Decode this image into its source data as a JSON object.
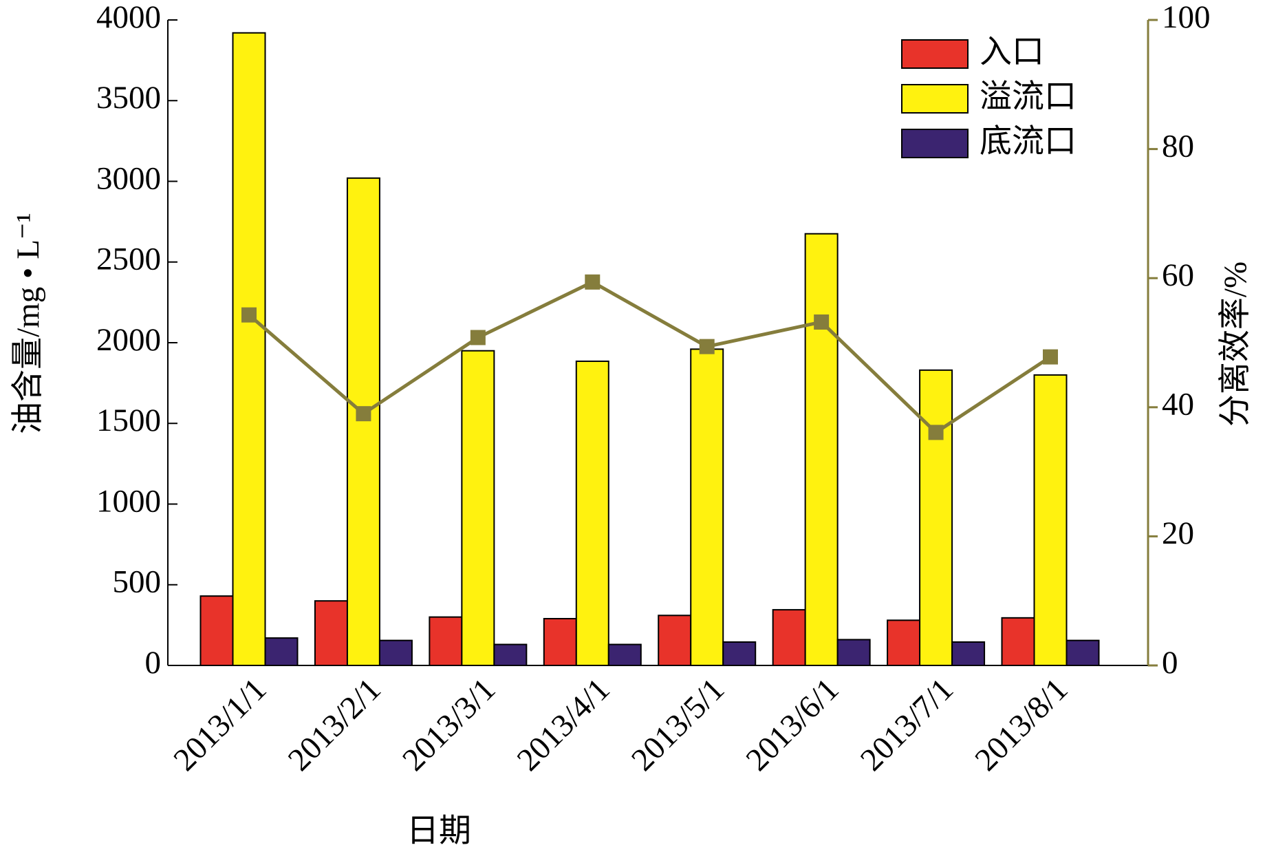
{
  "chart_data": {
    "type": "bar",
    "categories": [
      "2013/1/1",
      "2013/2/1",
      "2013/3/1",
      "2013/4/1",
      "2013/5/1",
      "2013/6/1",
      "2013/7/1",
      "2013/8/1"
    ],
    "x_label": "日期",
    "y_label": "油含量/mg • L⁻¹",
    "y2_label": "分离效率/%",
    "series": [
      {
        "name": "入口",
        "color": "#e8332a",
        "values": [
          430,
          400,
          300,
          290,
          310,
          345,
          280,
          295
        ]
      },
      {
        "name": "溢流口",
        "color": "#fff20f",
        "values": [
          3920,
          3020,
          1950,
          1885,
          1960,
          2675,
          1830,
          1800
        ]
      },
      {
        "name": "底流口",
        "color": "#3b2470",
        "values": [
          170,
          155,
          130,
          130,
          145,
          160,
          145,
          155
        ]
      },
      {
        "name": "分离效率",
        "type": "line",
        "axis": "y2",
        "color": "#857d3c",
        "values": [
          54.3,
          39,
          50.8,
          59.4,
          49.4,
          53.2,
          36.1,
          47.8
        ]
      }
    ],
    "ylim": [
      0,
      4000
    ],
    "yticks": [
      0,
      500,
      1000,
      1500,
      2000,
      2500,
      3000,
      3500,
      4000
    ],
    "y2lim": [
      0,
      100
    ],
    "y2ticks": [
      0,
      20,
      40,
      60,
      80,
      100
    ],
    "y2color": "#857d3c",
    "legend": "top-right"
  }
}
